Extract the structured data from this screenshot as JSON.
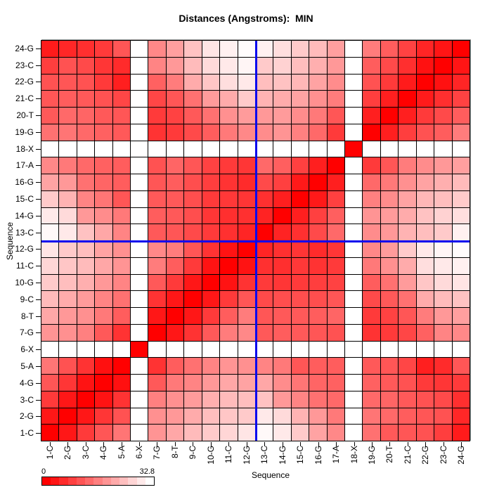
{
  "title": "Distances (Angstroms):  MIN",
  "x_axis": {
    "label": "Sequence"
  },
  "y_axis": {
    "label": "Sequence"
  },
  "legend": {
    "min_label": "0",
    "max_label": "32.8",
    "min_color": "#FF0000",
    "max_color": "#FFFFFF",
    "steps": 13
  },
  "crosshair": {
    "color": "#0808EE",
    "between_x": "12-G and 13-C",
    "between_y": "12-G and 13-C",
    "after_index": 12
  },
  "chart_data": {
    "type": "heatmap",
    "title": "Distances (Angstroms):  MIN",
    "xlabel": "Sequence",
    "ylabel": "Sequence",
    "value_range": [
      0,
      32.8
    ],
    "min_color": "#FF0000",
    "max_color": "#FFFFFF",
    "grid_color": "#000000",
    "missing_residues": [
      "6-X",
      "18-X"
    ],
    "categories": [
      "1-C",
      "2-G",
      "3-C",
      "4-G",
      "5-A",
      "6-X",
      "7-G",
      "8-T",
      "9-C",
      "10-G",
      "11-C",
      "12-G",
      "13-C",
      "14-G",
      "15-C",
      "16-G",
      "17-A",
      "18-X",
      "19-G",
      "20-T",
      "21-C",
      "22-G",
      "23-C",
      "24-G"
    ],
    "matrix": [
      [
        0,
        3,
        7.5,
        11,
        15,
        null,
        19,
        21.5,
        24,
        26,
        27.5,
        29.5,
        32,
        30,
        26,
        21,
        17.5,
        null,
        14.5,
        11.5,
        11,
        10.5,
        8,
        3.5
      ],
      [
        3,
        0,
        3,
        7,
        10.5,
        null,
        18.5,
        19.5,
        22,
        24.5,
        25.5,
        26,
        30,
        28,
        23,
        19.5,
        15.5,
        null,
        15,
        13.5,
        12,
        11,
        10.5,
        5
      ],
      [
        7.5,
        3,
        0,
        2.5,
        6.5,
        null,
        16.5,
        18.5,
        20,
        22.5,
        24,
        24.5,
        25,
        19.5,
        17,
        14.5,
        13.5,
        null,
        13.5,
        13,
        11.5,
        10.5,
        9.5,
        6
      ],
      [
        11,
        7,
        2.5,
        0,
        2,
        null,
        11.5,
        15.5,
        17,
        19.5,
        21.5,
        21,
        21.5,
        18,
        15,
        13,
        12.5,
        null,
        12.5,
        11.5,
        10.5,
        7.5,
        7,
        7.5
      ],
      [
        15,
        10.5,
        6.5,
        2,
        0,
        null,
        6.5,
        12,
        14.5,
        17,
        19,
        18.5,
        17,
        15.5,
        11,
        12,
        12,
        null,
        11.5,
        11,
        9,
        4,
        5.5,
        11
      ],
      [
        null,
        null,
        null,
        null,
        null,
        0,
        null,
        null,
        null,
        null,
        null,
        null,
        null,
        null,
        null,
        null,
        null,
        null,
        null,
        null,
        null,
        null,
        null,
        null
      ],
      [
        19,
        18.5,
        16.5,
        11.5,
        6.5,
        null,
        0,
        3,
        6.5,
        11.5,
        16,
        17.5,
        11.5,
        12,
        11.5,
        11,
        10.5,
        null,
        6.5,
        7.5,
        9,
        12.5,
        17,
        17.5
      ],
      [
        21.5,
        19.5,
        18.5,
        15.5,
        12,
        null,
        3,
        0,
        3,
        7.5,
        12,
        16,
        11,
        11.5,
        11.5,
        12,
        13,
        null,
        7.5,
        8.5,
        11,
        16,
        19.5,
        20.5
      ],
      [
        24,
        22,
        20,
        17,
        14.5,
        null,
        6.5,
        3,
        0,
        3,
        7.5,
        11,
        9.5,
        10,
        10,
        10,
        11,
        null,
        9.5,
        11.5,
        14.5,
        22,
        24,
        25
      ],
      [
        26,
        24.5,
        22.5,
        19.5,
        17,
        null,
        11.5,
        7.5,
        3,
        0,
        2.5,
        6.5,
        7.5,
        7,
        7.5,
        8,
        8.5,
        null,
        12,
        14.5,
        20,
        25.5,
        28,
        29.5
      ],
      [
        27.5,
        25.5,
        24,
        21.5,
        19,
        null,
        16,
        12,
        7.5,
        2.5,
        0,
        2.5,
        6.2,
        6,
        7.2,
        6.5,
        7.5,
        null,
        15.5,
        18.5,
        22,
        28.5,
        30,
        31
      ],
      [
        29.5,
        26,
        24.5,
        21,
        18.5,
        null,
        17.5,
        16,
        11,
        6.5,
        2.5,
        0,
        4.8,
        6.2,
        6.8,
        5.5,
        7,
        null,
        17.5,
        20,
        26,
        30,
        31.5,
        32.4
      ],
      [
        32,
        30,
        25,
        21.5,
        17,
        null,
        11.5,
        11,
        9.5,
        7.5,
        6.2,
        4.8,
        0,
        4.5,
        6.2,
        9.5,
        13.5,
        null,
        18,
        19.5,
        23,
        24.5,
        26,
        31
      ],
      [
        30,
        28,
        19.5,
        18,
        15.5,
        null,
        12,
        11.5,
        10,
        7,
        6,
        6.2,
        4.5,
        0,
        4,
        8.2,
        12.2,
        null,
        19,
        20,
        22,
        25,
        27,
        28.5
      ],
      [
        26,
        23,
        17,
        15,
        11,
        null,
        11.5,
        11.5,
        10,
        7.5,
        7.2,
        6.8,
        6.2,
        4,
        0,
        3.2,
        8.2,
        null,
        16.5,
        18,
        21,
        23.5,
        24.5,
        26
      ],
      [
        21,
        19.5,
        14.5,
        13,
        12,
        null,
        11,
        12,
        10,
        8,
        6.5,
        5.5,
        9.5,
        8.2,
        3.2,
        0,
        4,
        null,
        13.5,
        15.5,
        18.5,
        21,
        22.5,
        24
      ],
      [
        17.5,
        15.5,
        13.5,
        12.5,
        12,
        null,
        10.5,
        13,
        11,
        8.5,
        7.5,
        7,
        13.5,
        12.2,
        8.2,
        4,
        0,
        null,
        7.5,
        11,
        16,
        18,
        19.5,
        20.5
      ],
      [
        null,
        null,
        null,
        null,
        null,
        null,
        null,
        null,
        null,
        null,
        null,
        null,
        null,
        null,
        null,
        null,
        null,
        0,
        null,
        null,
        null,
        null,
        null,
        null
      ],
      [
        14.5,
        15,
        13.5,
        12.5,
        11.5,
        null,
        6.5,
        7.5,
        9.5,
        12,
        15.5,
        17.5,
        18,
        19,
        16.5,
        13.5,
        7.5,
        null,
        0,
        4,
        8,
        10.5,
        12,
        16
      ],
      [
        11.5,
        13.5,
        13,
        11.5,
        11,
        null,
        7.5,
        8.5,
        11.5,
        14.5,
        18.5,
        20,
        19.5,
        20,
        18,
        15.5,
        11,
        null,
        4,
        0,
        4,
        7.5,
        9.5,
        12
      ],
      [
        11,
        12,
        11.5,
        10.5,
        9,
        null,
        9,
        11,
        14.5,
        20,
        22,
        26,
        23,
        22,
        21,
        18.5,
        16,
        null,
        8,
        4,
        0,
        3.5,
        6,
        8.5
      ],
      [
        10.5,
        11,
        10.5,
        7.5,
        4,
        null,
        12.5,
        16,
        22,
        25.5,
        28.5,
        30,
        24.5,
        25,
        23.5,
        21,
        18,
        null,
        10.5,
        7.5,
        3.5,
        0,
        2.2,
        4.8
      ],
      [
        8,
        10.5,
        9.5,
        7,
        5.5,
        null,
        17,
        19.5,
        24,
        28,
        30,
        31.5,
        26,
        27,
        24.5,
        22.5,
        19.5,
        null,
        12,
        9.5,
        6,
        2.2,
        0,
        2.7
      ],
      [
        3.5,
        5,
        6,
        7.5,
        11,
        null,
        17.5,
        20.5,
        25,
        29.5,
        31,
        32.4,
        31,
        28.5,
        26,
        24,
        20.5,
        null,
        16,
        12,
        8.5,
        4.8,
        2.7,
        0
      ]
    ]
  }
}
